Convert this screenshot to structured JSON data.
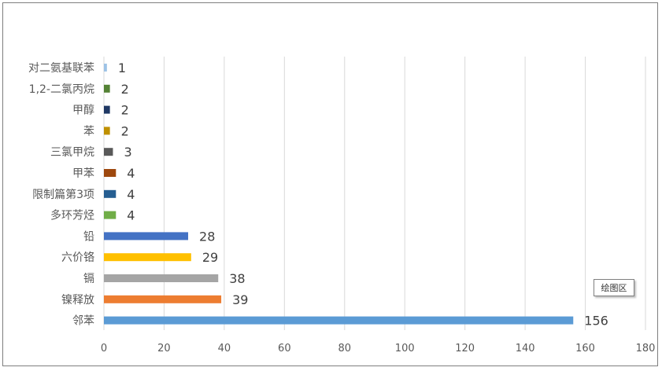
{
  "chart_data": {
    "type": "bar",
    "orientation": "horizontal",
    "categories": [
      "对二氨基联苯",
      "1,2-二氯丙烷",
      "甲醇",
      "苯",
      "三氯甲烷",
      "甲苯",
      "限制篇第3项",
      "多环芳烃",
      "铅",
      "六价铬",
      "镉",
      "镍释放",
      "邻苯"
    ],
    "values": [
      1,
      2,
      2,
      2,
      3,
      4,
      4,
      4,
      28,
      29,
      38,
      39,
      156
    ],
    "colors": [
      "#9dc3e6",
      "#548235",
      "#1f3864",
      "#bf9000",
      "#595959",
      "#9e480e",
      "#255e91",
      "#70ad47",
      "#4472c4",
      "#ffc000",
      "#a5a5a5",
      "#ed7d31",
      "#5b9bd5"
    ],
    "xlim": [
      0,
      180
    ],
    "xticks": [
      0,
      20,
      40,
      60,
      80,
      100,
      120,
      140,
      160,
      180
    ],
    "grid": true,
    "data_labels": true
  },
  "tooltip": {
    "text": "绘图区"
  }
}
